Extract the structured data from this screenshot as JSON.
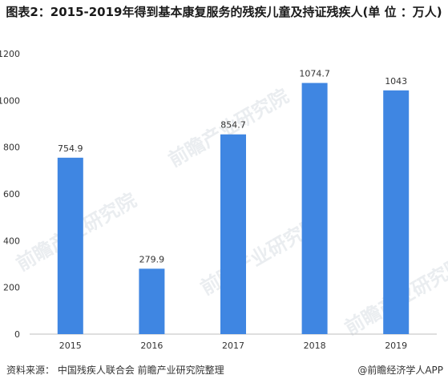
{
  "title": "图表2：2015-2019年得到基本康复服务的残疾儿童及持证残疾人(单 位 ：万人)",
  "source": "资料来源： 中国残疾人联合会 前瞻产业研究院整理",
  "brand": "@前瞻经济学人APP",
  "watermark": "前瞻产业研究院",
  "colors": {
    "bar": "#3f86e2",
    "axis": "#bfbfbf",
    "text": "#333333"
  },
  "chart_data": {
    "type": "bar",
    "title": "图表2：2015-2019年得到基本康复服务的残疾儿童及持证残疾人(单 位 ：万人)",
    "categories": [
      "2015",
      "2016",
      "2017",
      "2018",
      "2019"
    ],
    "values": [
      754.9,
      279.9,
      854.7,
      1074.7,
      1043
    ],
    "value_labels": [
      "754.9",
      "279.9",
      "854.7",
      "1074.7",
      "1043"
    ],
    "ylim": [
      0,
      1200
    ],
    "yticks": [
      0,
      200,
      400,
      600,
      800,
      1000,
      1200
    ],
    "grid": false,
    "legend": "none"
  }
}
